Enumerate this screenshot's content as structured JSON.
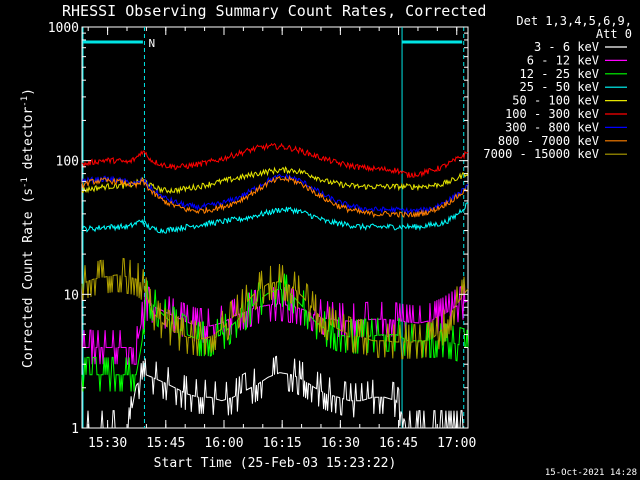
{
  "chart_data": {
    "type": "line",
    "title": "RHESSI Observing Summary Count Rates, Corrected",
    "xlabel": "Start Time (25-Feb-03 15:23:22)",
    "ylabel_main": "Corrected Count Rate (s",
    "ylabel_sup1": "-1",
    "ylabel_mid": " detector",
    "ylabel_sup2": "-1",
    "ylabel_end": ")",
    "yscale": "log",
    "ylim": [
      1,
      1000
    ],
    "xlim_minutes": [
      0,
      99.5
    ],
    "x_ticks": [
      {
        "label": "15:30",
        "minutes": 6.6
      },
      {
        "label": "15:45",
        "minutes": 21.6
      },
      {
        "label": "16:00",
        "minutes": 36.6
      },
      {
        "label": "16:15",
        "minutes": 51.6
      },
      {
        "label": "16:30",
        "minutes": 66.6
      },
      {
        "label": "16:45",
        "minutes": 81.6
      },
      {
        "label": "17:00",
        "minutes": 96.6
      }
    ],
    "y_ticks": [
      {
        "label": "1",
        "value": 1
      },
      {
        "label": "10",
        "value": 10
      },
      {
        "label": "100",
        "value": 100
      },
      {
        "label": "1000",
        "value": 1000
      }
    ],
    "legend_header": [
      "Det 1,3,4,5,6,9,",
      "Att 0"
    ],
    "legend_position": "top-right",
    "marker_label": "N",
    "markers": {
      "solid_lines_minutes": [
        0,
        82.5
      ],
      "dashed_lines_minutes": [
        16.1,
        98.4
      ],
      "bars": [
        [
          0,
          15.7
        ],
        [
          82.5,
          98.0
        ]
      ],
      "color": "#00e5e5"
    },
    "x_knots": [
      0,
      3,
      6,
      9,
      12,
      14,
      15.5,
      16.5,
      18,
      21,
      24,
      27,
      30,
      33,
      36,
      39,
      42,
      45,
      48,
      51,
      54,
      57,
      60,
      63,
      66,
      69,
      72,
      75,
      78,
      81,
      84,
      87,
      90,
      93,
      96,
      99.5
    ],
    "series": [
      {
        "name": "3 - 6 keV",
        "color": "#ffffff",
        "noise": "step",
        "values": [
          1,
          1,
          1,
          1,
          1,
          2.1,
          2.3,
          2.5,
          2.4,
          2.2,
          2.0,
          1.8,
          1.7,
          1.7,
          1.6,
          1.7,
          1.9,
          2.1,
          2.4,
          2.6,
          2.5,
          2.3,
          2.0,
          1.8,
          1.7,
          1.6,
          1.6,
          1.7,
          1.7,
          1.6,
          1,
          1,
          1,
          1,
          1,
          1
        ]
      },
      {
        "name": "6 - 12 keV",
        "color": "#ff00ff",
        "noise": "step",
        "values": [
          4,
          4,
          4,
          4,
          4,
          4,
          6.5,
          8.5,
          8.2,
          7.5,
          6.8,
          6.2,
          5.8,
          5.8,
          6.1,
          6.8,
          7.4,
          8.0,
          8.3,
          8.5,
          8.2,
          7.7,
          7.0,
          6.6,
          6.4,
          6.3,
          6.4,
          6.5,
          6.5,
          6.4,
          6.2,
          6.1,
          6.4,
          7.0,
          8.0,
          9.0
        ]
      },
      {
        "name": "12 - 25 keV",
        "color": "#00ff00",
        "noise": "step",
        "values": [
          2.5,
          2.5,
          2.5,
          2.5,
          2.5,
          2.5,
          4.5,
          9.5,
          8.5,
          7.0,
          5.8,
          5.0,
          4.6,
          4.6,
          5.0,
          6.0,
          7.2,
          8.8,
          10.2,
          11.0,
          10.0,
          8.0,
          6.3,
          5.4,
          5.0,
          4.8,
          4.8,
          4.9,
          5.0,
          5.0,
          4.5,
          4.5,
          4.5,
          4.5,
          4.3,
          4.0
        ]
      },
      {
        "name": "25 - 50 keV",
        "color": "#00ffff",
        "noise": "smooth",
        "values": [
          31,
          31,
          32,
          32,
          32,
          34,
          36,
          33,
          31,
          30,
          31,
          32,
          33,
          34,
          35,
          36,
          37,
          39,
          41,
          43,
          43,
          41,
          38,
          35,
          34,
          33,
          32,
          32,
          32,
          32,
          32,
          32,
          33,
          34,
          38,
          48
        ]
      },
      {
        "name": "50 - 100 keV",
        "color": "#e6e600",
        "noise": "smooth",
        "values": [
          60,
          62,
          64,
          65,
          65,
          68,
          72,
          70,
          64,
          60,
          60,
          62,
          64,
          67,
          70,
          73,
          76,
          80,
          83,
          85,
          85,
          82,
          76,
          70,
          67,
          65,
          64,
          64,
          64,
          64,
          64,
          64,
          65,
          67,
          72,
          82
        ]
      },
      {
        "name": "100 - 300 keV",
        "color": "#ff0000",
        "noise": "smooth",
        "values": [
          93,
          98,
          101,
          100,
          97,
          105,
          118,
          112,
          100,
          93,
          90,
          91,
          94,
          98,
          103,
          110,
          117,
          124,
          128,
          128,
          124,
          117,
          109,
          102,
          96,
          92,
          89,
          87,
          86,
          85,
          78,
          80,
          84,
          90,
          100,
          115
        ]
      },
      {
        "name": "300 - 800 keV",
        "color": "#0000ff",
        "noise": "smooth",
        "values": [
          70,
          72,
          73,
          72,
          69,
          67,
          72,
          68,
          61,
          53,
          49,
          46,
          45,
          46,
          48,
          51,
          56,
          63,
          71,
          76,
          75,
          69,
          61,
          54,
          49,
          46,
          44,
          43,
          43,
          43,
          42,
          42,
          44,
          48,
          54,
          64
        ]
      },
      {
        "name": "800 - 7000 keV",
        "color": "#ff8000",
        "noise": "smooth",
        "values": [
          66,
          70,
          71,
          70,
          67,
          65,
          70,
          66,
          58,
          50,
          46,
          43,
          42,
          43,
          45,
          48,
          53,
          60,
          68,
          73,
          72,
          66,
          58,
          51,
          46,
          43,
          41,
          40,
          40,
          40,
          39,
          40,
          42,
          46,
          52,
          62
        ]
      },
      {
        "name": "7000 - 15000 keV",
        "color": "#b0a000",
        "noise": "step",
        "values": [
          12,
          13,
          13.5,
          14,
          13.5,
          13,
          12,
          10,
          7.5,
          6.0,
          5.2,
          4.8,
          4.6,
          4.8,
          5.5,
          6.8,
          8.5,
          10.5,
          12.0,
          12.5,
          11.5,
          9.5,
          7.5,
          6.2,
          5.5,
          5.0,
          4.8,
          4.5,
          4.5,
          4.4,
          4.4,
          4.4,
          4.6,
          5.5,
          8.0,
          11.0
        ]
      }
    ]
  },
  "footer": {
    "date_stamp": "15-Oct-2021 14:28"
  }
}
